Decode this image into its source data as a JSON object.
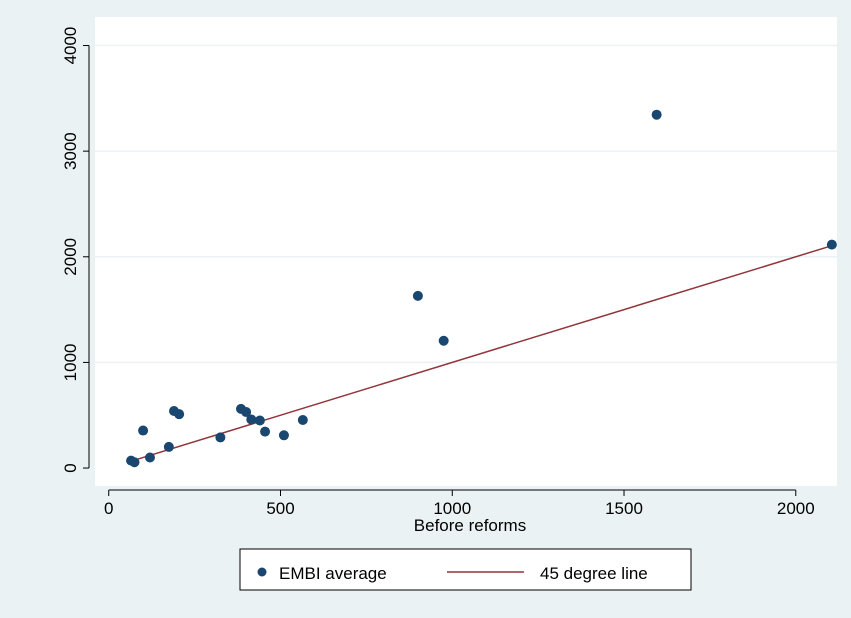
{
  "chart_data": {
    "type": "scatter",
    "title": "",
    "xlabel": "Before reforms",
    "ylabel": "",
    "xlim": [
      -40,
      2120
    ],
    "ylim": [
      -170,
      4270
    ],
    "x_ticks": [
      0,
      500,
      1000,
      1500,
      2000
    ],
    "y_ticks": [
      0,
      1000,
      2000,
      3000,
      4000
    ],
    "x_tick_labels": [
      "0",
      "500",
      "1000",
      "1500",
      "2000"
    ],
    "y_tick_labels": [
      "0",
      "1000",
      "2000",
      "3000",
      "4000"
    ],
    "grid": "horizontal",
    "legend_position": "bottom",
    "series": [
      {
        "name": "EMBI average",
        "kind": "scatter",
        "color": "#1a476f",
        "points": [
          {
            "x": 65,
            "y": 70
          },
          {
            "x": 75,
            "y": 55
          },
          {
            "x": 100,
            "y": 355
          },
          {
            "x": 120,
            "y": 100
          },
          {
            "x": 175,
            "y": 200
          },
          {
            "x": 190,
            "y": 540
          },
          {
            "x": 205,
            "y": 510
          },
          {
            "x": 325,
            "y": 290
          },
          {
            "x": 385,
            "y": 560
          },
          {
            "x": 400,
            "y": 530
          },
          {
            "x": 415,
            "y": 460
          },
          {
            "x": 440,
            "y": 450
          },
          {
            "x": 455,
            "y": 345
          },
          {
            "x": 510,
            "y": 310
          },
          {
            "x": 565,
            "y": 455
          },
          {
            "x": 900,
            "y": 1630
          },
          {
            "x": 975,
            "y": 1205
          },
          {
            "x": 1595,
            "y": 3345
          },
          {
            "x": 2105,
            "y": 2115
          }
        ]
      },
      {
        "name": "45 degree line",
        "kind": "line",
        "color": "#90353b",
        "points": [
          {
            "x": 65,
            "y": 65
          },
          {
            "x": 2105,
            "y": 2105
          }
        ]
      }
    ]
  },
  "colors": {
    "outer_background": "#eaf2f3",
    "plot_background": "#ffffff",
    "gridline": "#eaf2f3",
    "marker": "#1a476f",
    "line": "#90353b"
  }
}
